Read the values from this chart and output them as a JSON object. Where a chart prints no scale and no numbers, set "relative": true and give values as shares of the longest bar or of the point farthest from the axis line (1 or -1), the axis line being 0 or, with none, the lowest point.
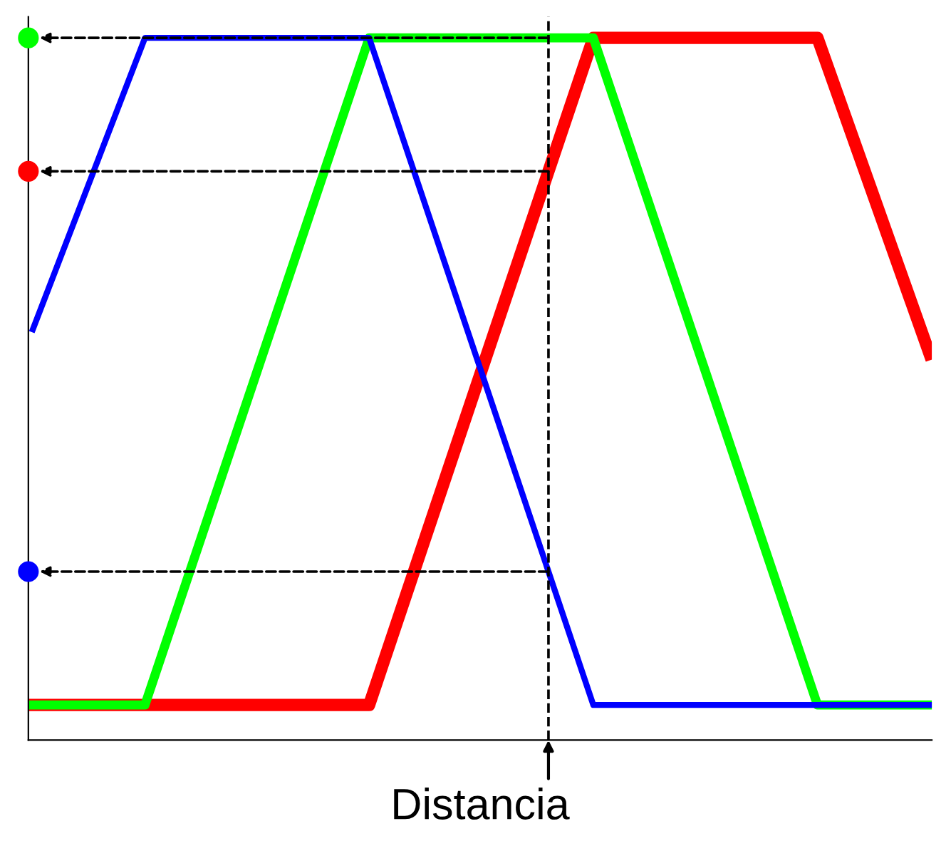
{
  "chart_data": {
    "type": "line",
    "relative": true,
    "xlabel": "Distancia",
    "categories": [
      null,
      null,
      null,
      null,
      null,
      null,
      null,
      null,
      null
    ],
    "series": [
      {
        "color": "#ff0000",
        "values": [
          0.05,
          0.05,
          0.05,
          0.05,
          0.525,
          1,
          1,
          1,
          0.55
        ]
      },
      {
        "color": "#00ff00",
        "values": [
          0.05,
          0.05,
          0.525,
          1,
          1,
          1,
          0.525,
          0.05,
          0.05
        ]
      },
      {
        "color": "#0000ff",
        "values": [
          0.585,
          1,
          1,
          1,
          0.525,
          0.05,
          0.05,
          0.05,
          0.05
        ]
      }
    ],
    "marker": "none",
    "line_style": "solid"
  }
}
